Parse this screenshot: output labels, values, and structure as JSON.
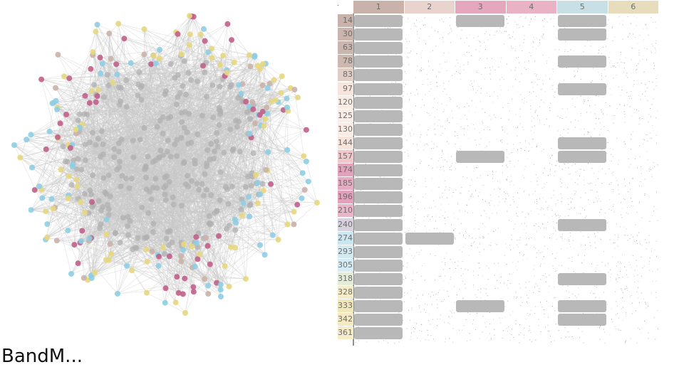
{
  "app": {
    "label": "BandM..."
  },
  "colors": {
    "node_default": "#b0b0b0",
    "edge": "#c8c8c8",
    "group_colors": [
      "#c9b2a9",
      "#f6dfd3",
      "#dc9ab0",
      "#b7dbe9",
      "#ede0a7"
    ],
    "block": "#b8b8b8",
    "matrix_dot": "#8a8a8a",
    "header_text": "#6d6d6d",
    "node_yellow": "#e7d77f",
    "node_blue": "#8fcde3",
    "node_pink": "#c1608a",
    "node_brown": "#9b7e74"
  },
  "matrix": {
    "corner": ".",
    "columns": [
      {
        "label": "1",
        "color": "#c9b2a9"
      },
      {
        "label": "2",
        "color": "#e8d4cc"
      },
      {
        "label": "3",
        "color": "#e4a7bd"
      },
      {
        "label": "4",
        "color": "#e9b2c5"
      },
      {
        "label": "5",
        "color": "#c9dfe6"
      },
      {
        "label": "6",
        "color": "#e7dcbc"
      }
    ],
    "rows": [
      {
        "label": "14",
        "color": "#c9b2a9",
        "blocks": [
          1,
          3,
          5
        ]
      },
      {
        "label": "30",
        "color": "#cab4ab",
        "blocks": [
          1,
          5
        ]
      },
      {
        "label": "63",
        "color": "#cbb6ad",
        "blocks": [
          1
        ]
      },
      {
        "label": "78",
        "color": "#cdb8af",
        "blocks": [
          1,
          5
        ]
      },
      {
        "label": "83",
        "color": "#e0cdc3",
        "blocks": [
          1
        ]
      },
      {
        "label": "97",
        "color": "#f7e5dc",
        "blocks": [
          1,
          5
        ]
      },
      {
        "label": "120",
        "color": "#f9ece5",
        "blocks": [
          1
        ]
      },
      {
        "label": "125",
        "color": "#faece6",
        "blocks": [
          1
        ]
      },
      {
        "label": "130",
        "color": "#faebe4",
        "blocks": [
          1
        ]
      },
      {
        "label": "144",
        "color": "#f7e4db",
        "blocks": [
          1,
          5
        ]
      },
      {
        "label": "157",
        "color": "#f1c8c9",
        "blocks": [
          1,
          3,
          5
        ]
      },
      {
        "label": "174",
        "color": "#e3a2bb",
        "blocks": [
          1
        ]
      },
      {
        "label": "185",
        "color": "#e6abc1",
        "blocks": [
          1
        ]
      },
      {
        "label": "196",
        "color": "#e3a0ba",
        "blocks": [
          1
        ]
      },
      {
        "label": "210",
        "color": "#e9b5c8",
        "blocks": [
          1
        ]
      },
      {
        "label": "240",
        "color": "#d7d0df",
        "blocks": [
          1,
          5
        ]
      },
      {
        "label": "274",
        "color": "#c9e6f1",
        "blocks": [
          1,
          2
        ]
      },
      {
        "label": "293",
        "color": "#d2ebf3",
        "blocks": [
          1
        ]
      },
      {
        "label": "305",
        "color": "#d5ecf4",
        "blocks": [
          1
        ]
      },
      {
        "label": "318",
        "color": "#e2ecd7",
        "blocks": [
          1,
          5
        ]
      },
      {
        "label": "328",
        "color": "#f4ecc8",
        "blocks": [
          1
        ]
      },
      {
        "label": "333",
        "color": "#f1e6b8",
        "blocks": [
          1,
          3,
          5
        ]
      },
      {
        "label": "342",
        "color": "#f3e9c3",
        "blocks": [
          1,
          5
        ]
      },
      {
        "label": "361",
        "color": "#f5ecca",
        "blocks": [
          1
        ]
      }
    ]
  }
}
